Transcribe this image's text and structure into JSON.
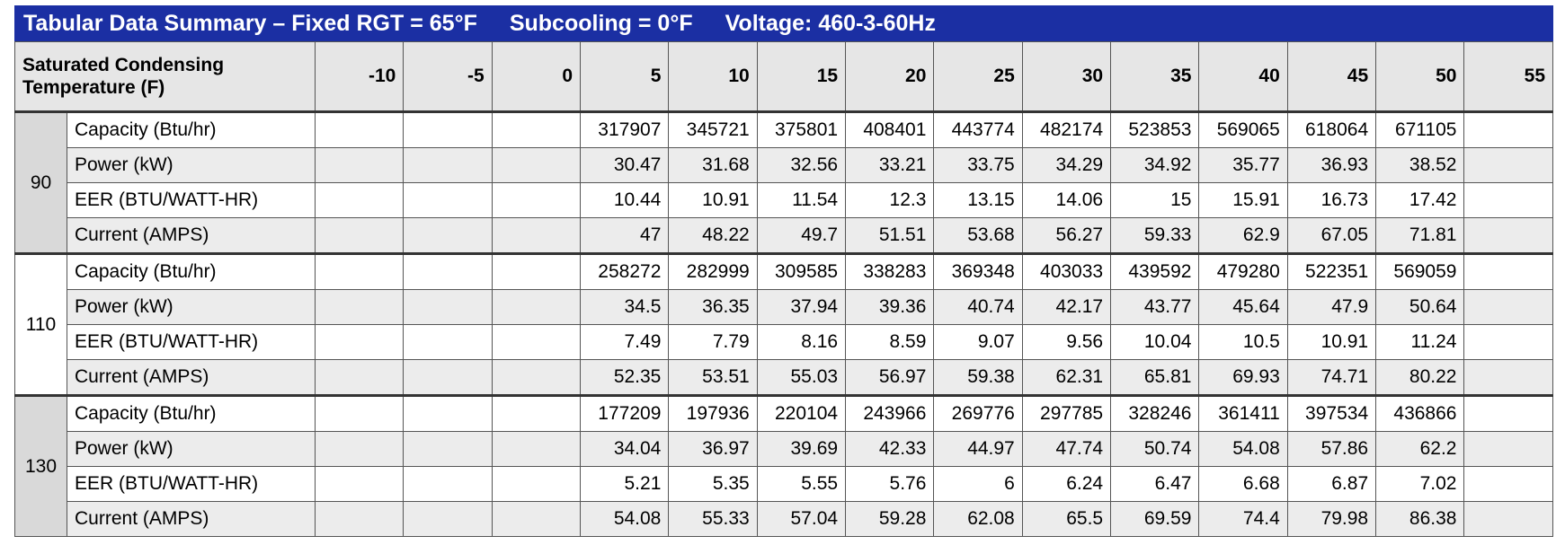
{
  "title": [
    "Tabular Data Summary – Fixed RGT = 65°F",
    "Subcooling = 0°F",
    "Voltage: 460-3-60Hz"
  ],
  "header": {
    "row_label": "Saturated Condensing Temperature (F)",
    "columns": [
      -10,
      -5,
      0,
      5,
      10,
      15,
      20,
      25,
      30,
      35,
      40,
      45,
      50,
      55
    ]
  },
  "groups": [
    {
      "label": 90,
      "rows": [
        {
          "label": "Capacity (Btu/hr)",
          "values": [
            null,
            null,
            null,
            317907,
            345721,
            375801,
            408401,
            443774,
            482174,
            523853,
            569065,
            618064,
            671105,
            null
          ]
        },
        {
          "label": "Power (kW)",
          "values": [
            null,
            null,
            null,
            30.47,
            31.68,
            32.56,
            33.21,
            33.75,
            34.29,
            34.92,
            35.77,
            36.93,
            38.52,
            null
          ]
        },
        {
          "label": "EER (BTU/WATT-HR)",
          "values": [
            null,
            null,
            null,
            10.44,
            10.91,
            11.54,
            12.3,
            13.15,
            14.06,
            15,
            15.91,
            16.73,
            17.42,
            null
          ]
        },
        {
          "label": "Current (AMPS)",
          "values": [
            null,
            null,
            null,
            47,
            48.22,
            49.7,
            51.51,
            53.68,
            56.27,
            59.33,
            62.9,
            67.05,
            71.81,
            null
          ]
        }
      ]
    },
    {
      "label": 110,
      "rows": [
        {
          "label": "Capacity (Btu/hr)",
          "values": [
            null,
            null,
            null,
            258272,
            282999,
            309585,
            338283,
            369348,
            403033,
            439592,
            479280,
            522351,
            569059,
            null
          ]
        },
        {
          "label": "Power (kW)",
          "values": [
            null,
            null,
            null,
            34.5,
            36.35,
            37.94,
            39.36,
            40.74,
            42.17,
            43.77,
            45.64,
            47.9,
            50.64,
            null
          ]
        },
        {
          "label": "EER (BTU/WATT-HR)",
          "values": [
            null,
            null,
            null,
            7.49,
            7.79,
            8.16,
            8.59,
            9.07,
            9.56,
            10.04,
            10.5,
            10.91,
            11.24,
            null
          ]
        },
        {
          "label": "Current (AMPS)",
          "values": [
            null,
            null,
            null,
            52.35,
            53.51,
            55.03,
            56.97,
            59.38,
            62.31,
            65.81,
            69.93,
            74.71,
            80.22,
            null
          ]
        }
      ]
    },
    {
      "label": 130,
      "rows": [
        {
          "label": "Capacity (Btu/hr)",
          "values": [
            null,
            null,
            null,
            177209,
            197936,
            220104,
            243966,
            269776,
            297785,
            328246,
            361411,
            397534,
            436866,
            null
          ]
        },
        {
          "label": "Power (kW)",
          "values": [
            null,
            null,
            null,
            34.04,
            36.97,
            39.69,
            42.33,
            44.97,
            47.74,
            50.74,
            54.08,
            57.86,
            62.2,
            null
          ]
        },
        {
          "label": "EER (BTU/WATT-HR)",
          "values": [
            null,
            null,
            null,
            5.21,
            5.35,
            5.55,
            5.76,
            6,
            6.24,
            6.47,
            6.68,
            6.87,
            7.02,
            null
          ]
        },
        {
          "label": "Current (AMPS)",
          "values": [
            null,
            null,
            null,
            54.08,
            55.33,
            57.04,
            59.28,
            62.08,
            65.5,
            69.59,
            74.4,
            79.98,
            86.38,
            null
          ]
        }
      ]
    }
  ]
}
